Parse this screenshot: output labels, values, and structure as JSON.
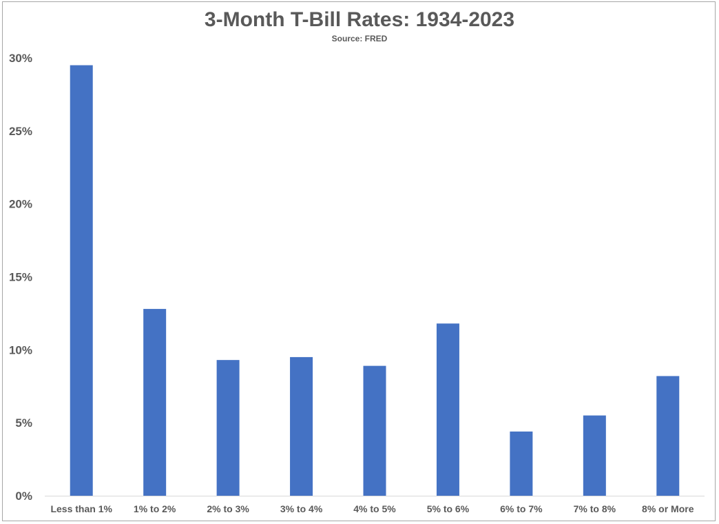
{
  "chart_data": {
    "type": "bar",
    "title": "3-Month T-Bill Rates: 1934-2023",
    "subtitle": "Source: FRED",
    "xlabel": "",
    "ylabel": "",
    "categories": [
      "Less than 1%",
      "1% to 2%",
      "2% to 3%",
      "3% to 4%",
      "4% to 5%",
      "5% to 6%",
      "6% to 7%",
      "7% to 8%",
      "8% or More"
    ],
    "values": [
      29.5,
      12.8,
      9.3,
      9.5,
      8.9,
      11.8,
      4.4,
      5.5,
      8.2
    ],
    "ylim": [
      0,
      30
    ],
    "yticks": [
      0,
      5,
      10,
      15,
      20,
      25,
      30
    ],
    "ytick_labels": [
      "0%",
      "5%",
      "10%",
      "15%",
      "20%",
      "25%",
      "30%"
    ],
    "grid": false,
    "legend": "none",
    "bar_color": "#4472c4"
  }
}
